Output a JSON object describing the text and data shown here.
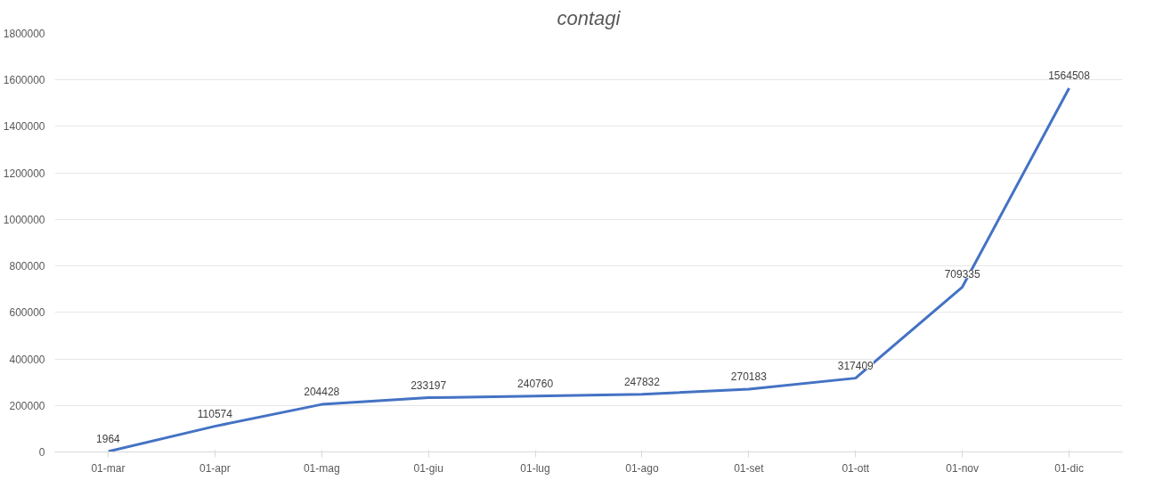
{
  "chart_data": {
    "type": "line",
    "title": "contagi",
    "categories": [
      "01-mar",
      "01-apr",
      "01-mag",
      "01-giu",
      "01-lug",
      "01-ago",
      "01-set",
      "01-ott",
      "01-nov",
      "01-dic"
    ],
    "series": [
      {
        "color": "#4472c4",
        "values": [
          1964,
          110574,
          204428,
          233197,
          240760,
          247832,
          270183,
          317409,
          709335,
          1564508
        ]
      }
    ],
    "ylim": [
      0,
      1800000
    ],
    "yticks": [
      0,
      200000,
      400000,
      600000,
      800000,
      1000000,
      1200000,
      1400000,
      1600000,
      1800000
    ],
    "grid": "y",
    "data_labels": true
  }
}
